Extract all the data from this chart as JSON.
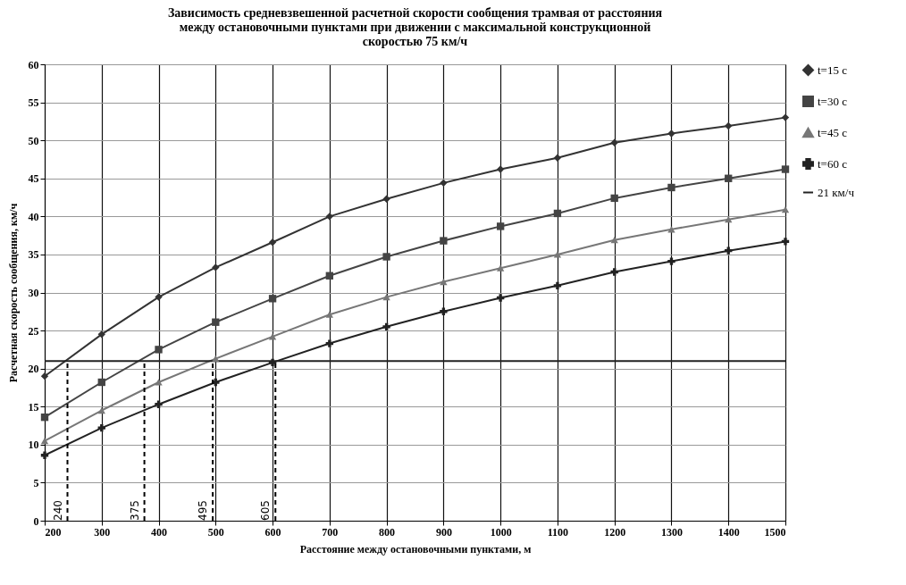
{
  "chart_data": {
    "type": "line",
    "title": "Зависимость средневзвешенной расчетной скорости сообщения трамвая от расстояния между остановочными пунктами при движении с максимальной конструкционной скоростью 75 км/ч",
    "xlabel": "Расстояние между остановочными пунктами, м",
    "ylabel": "Расчетная скорость сообщения, км/ч",
    "x": [
      200,
      300,
      400,
      500,
      600,
      700,
      800,
      900,
      1000,
      1100,
      1200,
      1300,
      1400,
      1500
    ],
    "series": [
      {
        "name": "t=15 с",
        "color": "#333333",
        "marker": "diamond",
        "values": [
          19,
          24.5,
          29.4,
          33.3,
          36.6,
          40,
          42.3,
          44.4,
          46.2,
          47.7,
          49.7,
          50.9,
          51.9,
          53
        ]
      },
      {
        "name": "t=30 с",
        "color": "#444444",
        "marker": "square",
        "values": [
          13.6,
          18.2,
          22.5,
          26.1,
          29.2,
          32.2,
          34.7,
          36.8,
          38.7,
          40.4,
          42.4,
          43.8,
          45,
          46.2
        ]
      },
      {
        "name": "t=45 с",
        "color": "#777777",
        "marker": "triangle",
        "values": [
          10.5,
          14.5,
          18.2,
          21.3,
          24.2,
          27.1,
          29.4,
          31.4,
          33.2,
          35,
          36.9,
          38.3,
          39.6,
          40.9
        ]
      },
      {
        "name": "t=60 с",
        "color": "#222222",
        "marker": "cross",
        "values": [
          8.6,
          12.2,
          15.3,
          18.2,
          20.8,
          23.3,
          25.5,
          27.5,
          29.3,
          30.9,
          32.7,
          34.1,
          35.5,
          36.7
        ]
      },
      {
        "name": "21 км/ч",
        "color": "#222222",
        "marker": "none",
        "values": [
          21,
          21,
          21,
          21,
          21,
          21,
          21,
          21,
          21,
          21,
          21,
          21,
          21,
          21
        ]
      }
    ],
    "ref_lines": [
      {
        "axis": "x",
        "value": 240,
        "label": "240",
        "line_style": "dashed",
        "color": "#000000"
      },
      {
        "axis": "x",
        "value": 375,
        "label": "375",
        "line_style": "dashed",
        "color": "#000000"
      },
      {
        "axis": "x",
        "value": 495,
        "label": "495",
        "line_style": "dashed",
        "color": "#000000"
      },
      {
        "axis": "x",
        "value": 605,
        "label": "605",
        "line_style": "dashed",
        "color": "#000000"
      }
    ],
    "xlim": [
      200,
      1500
    ],
    "xticks": [
      200,
      300,
      400,
      500,
      600,
      700,
      800,
      900,
      1000,
      1100,
      1200,
      1300,
      1400,
      1500
    ],
    "ylim": [
      0,
      60
    ],
    "yticks": [
      0,
      5,
      10,
      15,
      20,
      25,
      30,
      35,
      40,
      45,
      50,
      55,
      60
    ],
    "grid": true,
    "legend": "right"
  }
}
